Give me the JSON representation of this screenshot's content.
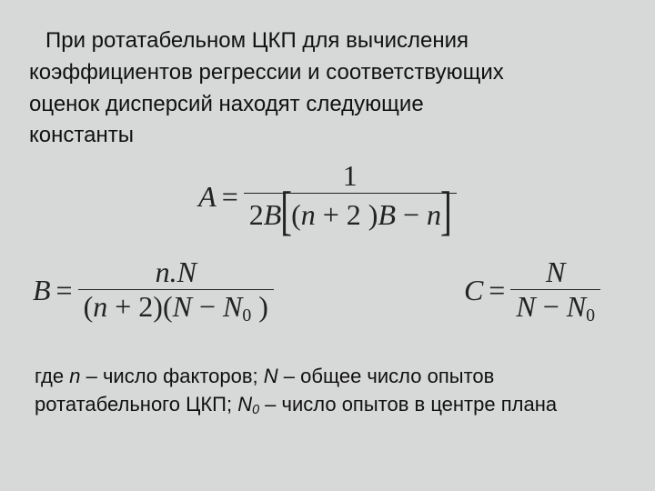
{
  "colors": {
    "background": "#d7d8d8",
    "text": "#111111",
    "formula": "#222222"
  },
  "paragraph": {
    "line1": "При ротатабельном ЦКП для вычисления",
    "line2": "коэффициентов регрессии и соответствующих",
    "line3": "оценок дисперсий находят следующие",
    "line4": "константы"
  },
  "formulaA": {
    "lhs": "A",
    "eq": "=",
    "num": "1",
    "den_prefix_num": "2",
    "den_prefix_var": "B",
    "den_inner_left_var": "n",
    "den_inner_left_op": "+",
    "den_inner_left_num": "2",
    "den_inner_right_var": "B",
    "den_inner_minus": "−",
    "den_inner_last": "n"
  },
  "formulaB": {
    "lhs": "B",
    "eq": "=",
    "num_left": "n.",
    "num_right": "N",
    "den_p1_var": "n",
    "den_p1_op": "+",
    "den_p1_num": "2",
    "den_p2_varA": "N",
    "den_p2_minus": "−",
    "den_p2_varB": "N",
    "den_p2_sub": "0"
  },
  "formulaC": {
    "lhs": "C",
    "eq": "=",
    "num": "N",
    "den_varA": "N",
    "den_minus": "−",
    "den_varB": "N",
    "den_sub": "0"
  },
  "caption": {
    "t1": "где ",
    "n": "n",
    "t2": " – число факторов; ",
    "N": "N",
    "t3": " – общее число опытов",
    "t4": "ротатабельного ЦКП; ",
    "N0": "N",
    "sub0": "0",
    "t5": " – число опытов в центре плана"
  }
}
